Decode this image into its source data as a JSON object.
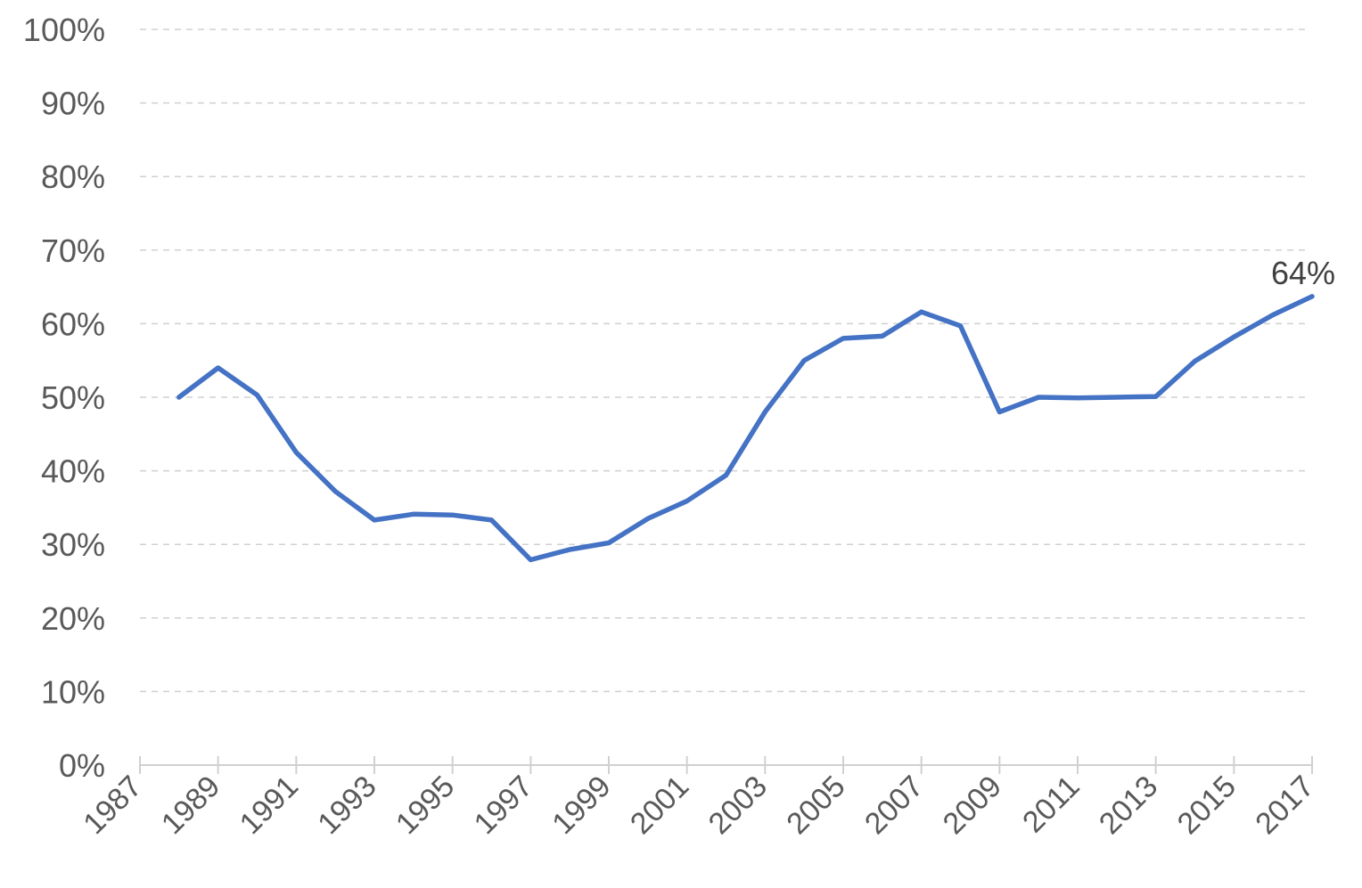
{
  "chart_data": {
    "type": "line",
    "title": "",
    "xlabel": "",
    "ylabel": "",
    "xlim": [
      1987,
      2017
    ],
    "ylim": [
      0,
      100
    ],
    "y_ticks": [
      "0%",
      "10%",
      "20%",
      "30%",
      "40%",
      "50%",
      "60%",
      "70%",
      "80%",
      "90%",
      "100%"
    ],
    "x_ticks": [
      "1987",
      "1989",
      "1991",
      "1993",
      "1995",
      "1997",
      "1999",
      "2001",
      "2003",
      "2005",
      "2007",
      "2009",
      "2011",
      "2013",
      "2015",
      "2017"
    ],
    "grid": true,
    "legend": "none",
    "series": [
      {
        "color": "#4472c4",
        "x": [
          1988,
          1989,
          1990,
          1991,
          1992,
          1993,
          1994,
          1995,
          1996,
          1997,
          1998,
          1999,
          2000,
          2001,
          2002,
          2003,
          2004,
          2005,
          2006,
          2007,
          2008,
          2009,
          2010,
          2011,
          2012,
          2013,
          2014,
          2015,
          2016,
          2017
        ],
        "values": [
          50,
          54,
          50.3,
          42.5,
          37.2,
          33.3,
          34.1,
          34,
          33.3,
          27.9,
          29.3,
          30.2,
          33.5,
          35.9,
          39.4,
          48,
          55,
          58,
          58.3,
          61.6,
          59.7,
          48,
          50,
          49.9,
          50,
          50.1,
          54.9,
          58.2,
          61.2,
          63.7
        ]
      }
    ],
    "annotations": [
      {
        "x": 2017,
        "y": 63.7,
        "text": "64%"
      }
    ]
  }
}
